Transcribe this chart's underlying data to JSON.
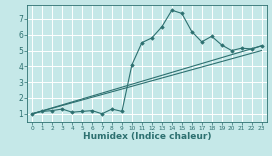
{
  "bg_color": "#c5e8e8",
  "grid_color": "#ffffff",
  "line_color": "#2d7070",
  "marker_color": "#2d7070",
  "xlabel": "Humidex (Indice chaleur)",
  "xlabel_fontsize": 6.5,
  "ylabel_ticks": [
    1,
    2,
    3,
    4,
    5,
    6,
    7
  ],
  "xtick_labels": [
    "0",
    "1",
    "2",
    "3",
    "4",
    "5",
    "6",
    "7",
    "8",
    "9",
    "10",
    "11",
    "12",
    "13",
    "14",
    "15",
    "16",
    "17",
    "18",
    "19",
    "20",
    "21",
    "22",
    "23"
  ],
  "xlim": [
    -0.5,
    23.5
  ],
  "ylim": [
    0.5,
    7.9
  ],
  "series_main": {
    "x": [
      0,
      1,
      2,
      3,
      4,
      5,
      6,
      7,
      8,
      9,
      10,
      11,
      12,
      13,
      14,
      15,
      16,
      17,
      18,
      19,
      20,
      21,
      22,
      23
    ],
    "y": [
      1.0,
      1.15,
      1.2,
      1.3,
      1.1,
      1.15,
      1.2,
      1.0,
      1.3,
      1.15,
      4.1,
      5.5,
      5.8,
      6.5,
      7.55,
      7.35,
      6.2,
      5.55,
      5.9,
      5.35,
      5.0,
      5.15,
      5.1,
      5.3
    ]
  },
  "line1": {
    "x": [
      0,
      23
    ],
    "y": [
      1.0,
      5.3
    ]
  },
  "line2": {
    "x": [
      0,
      23
    ],
    "y": [
      1.0,
      5.0
    ]
  }
}
